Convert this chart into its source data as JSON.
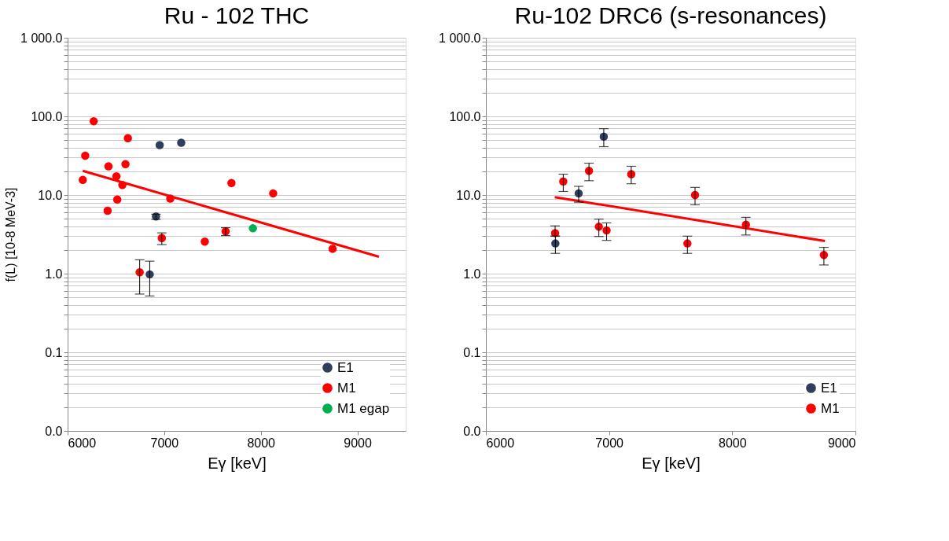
{
  "chart_data": [
    {
      "type": "scatter",
      "title": "Ru - 102 THC",
      "xlabel": "Eγ [keV]",
      "ylabel": "f(L) [10-8 MeV-3]",
      "xlim": [
        6000,
        9500
      ],
      "xticks": [
        6000,
        7000,
        8000,
        9000
      ],
      "ylim": [
        0.01,
        1000
      ],
      "log": "y",
      "grid": "y",
      "legend": "bottom right",
      "marker": "circle",
      "yticks": [
        {
          "value": 0.01,
          "label": "0.0"
        },
        {
          "value": 0.02,
          "label": null
        },
        {
          "value": 0.03,
          "label": null
        },
        {
          "value": 0.04,
          "label": null
        },
        {
          "value": 0.05,
          "label": null
        },
        {
          "value": 0.06,
          "label": null
        },
        {
          "value": 0.07,
          "label": null
        },
        {
          "value": 0.08,
          "label": null
        },
        {
          "value": 0.09,
          "label": null
        },
        {
          "value": 0.1,
          "label": "0.1"
        },
        {
          "value": 0.2,
          "label": null
        },
        {
          "value": 0.3,
          "label": null
        },
        {
          "value": 0.4,
          "label": null
        },
        {
          "value": 0.5,
          "label": null
        },
        {
          "value": 0.6,
          "label": null
        },
        {
          "value": 0.7,
          "label": null
        },
        {
          "value": 0.8,
          "label": null
        },
        {
          "value": 0.9,
          "label": null
        },
        {
          "value": 1,
          "label": "1.0"
        },
        {
          "value": 2,
          "label": null
        },
        {
          "value": 3,
          "label": null
        },
        {
          "value": 4,
          "label": null
        },
        {
          "value": 5,
          "label": null
        },
        {
          "value": 6,
          "label": null
        },
        {
          "value": 7,
          "label": null
        },
        {
          "value": 8,
          "label": null
        },
        {
          "value": 9,
          "label": null
        },
        {
          "value": 10,
          "label": "10.0"
        },
        {
          "value": 20,
          "label": null
        },
        {
          "value": 30,
          "label": null
        },
        {
          "value": 40,
          "label": null
        },
        {
          "value": 50,
          "label": null
        },
        {
          "value": 60,
          "label": null
        },
        {
          "value": 70,
          "label": null
        },
        {
          "value": 80,
          "label": null
        },
        {
          "value": 90,
          "label": null
        },
        {
          "value": 100,
          "label": "100.0"
        },
        {
          "value": 200,
          "label": null
        },
        {
          "value": 300,
          "label": null
        },
        {
          "value": 400,
          "label": null
        },
        {
          "value": 500,
          "label": null
        },
        {
          "value": 600,
          "label": null
        },
        {
          "value": 700,
          "label": null
        },
        {
          "value": 800,
          "label": null
        },
        {
          "value": 900,
          "label": null
        },
        {
          "value": 1000,
          "label": "1 000.0"
        }
      ],
      "series": [
        {
          "type": "line",
          "marker": "none",
          "color": "#ff0000",
          "x": [
            6157,
            9223
          ],
          "values": [
            20.3,
            1.64
          ]
        },
        {
          "name": "E1",
          "color": "#2f3e5c",
          "x": [
            6953,
            7176,
            6915,
            6850
          ],
          "values": [
            43.1,
            46.3,
            5.33,
            0.98
          ],
          "errors": [
            null,
            null,
            [
              4.9,
              5.7
            ],
            [
              0.52,
              1.44
            ]
          ]
        },
        {
          "name": "M1",
          "color": "#ff0000",
          "x": [
            6157,
            6182,
            6270,
            6414,
            6423,
            6505,
            6514,
            6567,
            6599,
            6624,
            6746,
            6975,
            7063,
            7420,
            7636,
            7696,
            8128,
            8743
          ],
          "values": [
            15.6,
            31.6,
            86.8,
            6.3,
            23.2,
            17.3,
            8.75,
            13.4,
            24.7,
            52.8,
            1.04,
            2.84,
            9.0,
            2.56,
            3.45,
            14.2,
            10.5,
            2.07
          ],
          "errors": [
            null,
            null,
            null,
            null,
            null,
            null,
            null,
            null,
            null,
            null,
            [
              0.55,
              1.5
            ],
            [
              2.34,
              3.3
            ],
            null,
            null,
            [
              3.05,
              3.84
            ],
            null,
            null,
            null
          ]
        },
        {
          "name": "M1 egap",
          "color": "#00b050",
          "x": [
            7918
          ],
          "values": [
            3.77
          ]
        }
      ]
    },
    {
      "type": "scatter",
      "title": "Ru-102 DRC6 (s-resonances)",
      "xlabel": "Eγ [keV]",
      "xlim": [
        6000,
        9000
      ],
      "xticks": [
        6000,
        7000,
        8000,
        9000
      ],
      "ylim": [
        0.01,
        1000
      ],
      "log": "y",
      "grid": "y",
      "legend": "bottom right",
      "marker": "circle",
      "yticks": [
        {
          "value": 0.01,
          "label": "0.0"
        },
        {
          "value": 0.02,
          "label": null
        },
        {
          "value": 0.03,
          "label": null
        },
        {
          "value": 0.04,
          "label": null
        },
        {
          "value": 0.05,
          "label": null
        },
        {
          "value": 0.06,
          "label": null
        },
        {
          "value": 0.07,
          "label": null
        },
        {
          "value": 0.08,
          "label": null
        },
        {
          "value": 0.09,
          "label": null
        },
        {
          "value": 0.1,
          "label": "0.1"
        },
        {
          "value": 0.2,
          "label": null
        },
        {
          "value": 0.3,
          "label": null
        },
        {
          "value": 0.4,
          "label": null
        },
        {
          "value": 0.5,
          "label": null
        },
        {
          "value": 0.6,
          "label": null
        },
        {
          "value": 0.7,
          "label": null
        },
        {
          "value": 0.8,
          "label": null
        },
        {
          "value": 0.9,
          "label": null
        },
        {
          "value": 1,
          "label": "1.0"
        },
        {
          "value": 2,
          "label": null
        },
        {
          "value": 3,
          "label": null
        },
        {
          "value": 4,
          "label": null
        },
        {
          "value": 5,
          "label": null
        },
        {
          "value": 6,
          "label": null
        },
        {
          "value": 7,
          "label": null
        },
        {
          "value": 8,
          "label": null
        },
        {
          "value": 9,
          "label": null
        },
        {
          "value": 10,
          "label": "10.0"
        },
        {
          "value": 20,
          "label": null
        },
        {
          "value": 30,
          "label": null
        },
        {
          "value": 40,
          "label": null
        },
        {
          "value": 50,
          "label": null
        },
        {
          "value": 60,
          "label": null
        },
        {
          "value": 70,
          "label": null
        },
        {
          "value": 80,
          "label": null
        },
        {
          "value": 90,
          "label": null
        },
        {
          "value": 100,
          "label": "100.0"
        },
        {
          "value": 200,
          "label": null
        },
        {
          "value": 300,
          "label": null
        },
        {
          "value": 400,
          "label": null
        },
        {
          "value": 500,
          "label": null
        },
        {
          "value": 600,
          "label": null
        },
        {
          "value": 700,
          "label": null
        },
        {
          "value": 800,
          "label": null
        },
        {
          "value": 900,
          "label": null
        },
        {
          "value": 1000,
          "label": "1 000.0"
        }
      ],
      "series": [
        {
          "type": "line",
          "marker": "none",
          "color": "#ff0000",
          "x": [
            6559,
            8752
          ],
          "values": [
            9.4,
            2.6
          ]
        },
        {
          "name": "E1",
          "color": "#2f3e5c",
          "x": [
            6564,
            6753,
            6957
          ],
          "values": [
            2.42,
            10.5,
            55.2
          ],
          "errors": [
            [
              1.81,
              3.0
            ],
            [
              8.1,
              12.9
            ],
            [
              41.2,
              69.7
            ]
          ]
        },
        {
          "name": "M1",
          "color": "#ff0000",
          "x": [
            6562,
            6628,
            6837,
            6917,
            6980,
            7180,
            7636,
            7698,
            8111,
            8744
          ],
          "values": [
            3.28,
            14.9,
            20.3,
            3.95,
            3.55,
            18.4,
            2.42,
            10.0,
            4.2,
            1.73
          ],
          "errors": [
            [
              3.0,
              4.05
            ],
            [
              11.1,
              18.4
            ],
            [
              15.2,
              25.4
            ],
            [
              2.97,
              4.93
            ],
            [
              2.65,
              4.42
            ],
            [
              13.9,
              23.2
            ],
            [
              1.81,
              3.0
            ],
            [
              7.5,
              12.5
            ],
            [
              3.1,
              5.2
            ],
            [
              1.29,
              2.16
            ]
          ]
        }
      ]
    }
  ]
}
